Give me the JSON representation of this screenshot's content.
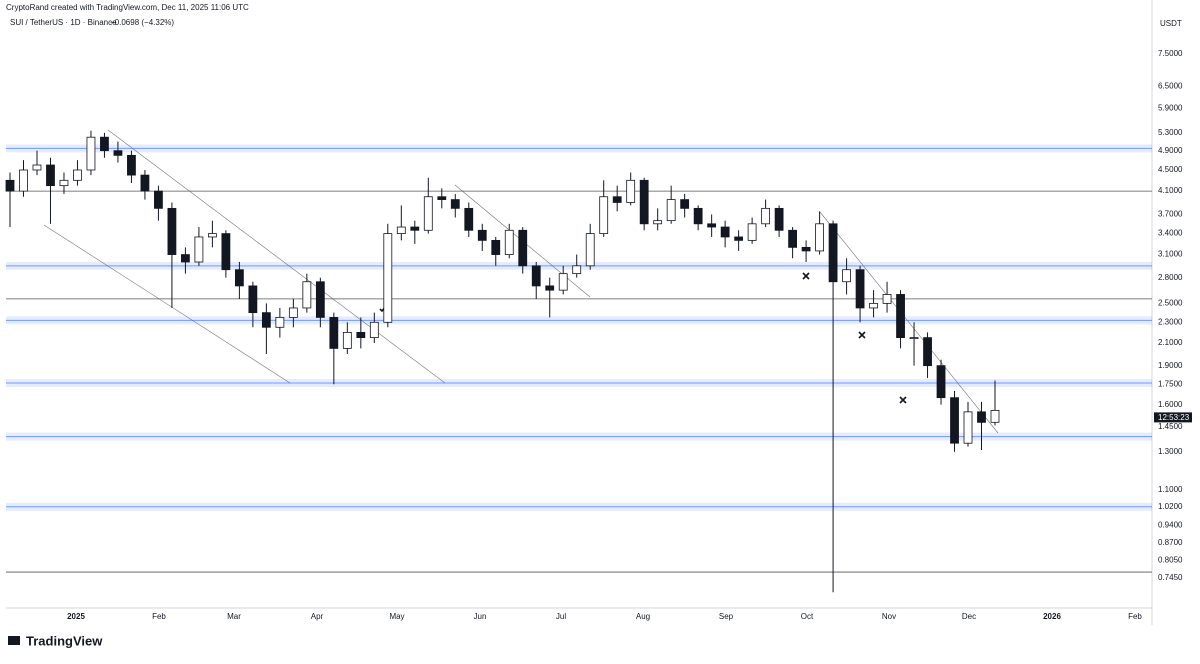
{
  "chart_data": {
    "type": "candlestick",
    "credit": "CryptoRand created with TradingView.com, Dec 11, 2025 11:06 UTC",
    "symbol": "SUI / TetherUS · 1D · Binance",
    "change": "−0.0698 (−4.32%)",
    "y_axis_label": "USDT",
    "countdown": "12:53:23",
    "brand": "TradingView",
    "log_scale": true,
    "ylim": [
      0.653,
      8.34
    ],
    "yticks": [
      {
        "value": 7.5,
        "label": "7.5000"
      },
      {
        "value": 6.5,
        "label": "6.5000"
      },
      {
        "value": 5.9,
        "label": "5.9000"
      },
      {
        "value": 5.3,
        "label": "5.3000"
      },
      {
        "value": 4.9,
        "label": "4.9000"
      },
      {
        "value": 4.5,
        "label": "4.5000"
      },
      {
        "value": 4.1,
        "label": "4.1000"
      },
      {
        "value": 3.7,
        "label": "3.7000"
      },
      {
        "value": 3.4,
        "label": "3.4000"
      },
      {
        "value": 3.1,
        "label": "3.1000"
      },
      {
        "value": 2.8,
        "label": "2.8000"
      },
      {
        "value": 2.5,
        "label": "2.5000"
      },
      {
        "value": 2.3,
        "label": "2.3000"
      },
      {
        "value": 2.1,
        "label": "2.1000"
      },
      {
        "value": 1.9,
        "label": "1.9000"
      },
      {
        "value": 1.75,
        "label": "1.7500"
      },
      {
        "value": 1.6,
        "label": "1.6000"
      },
      {
        "value": 1.45,
        "label": "1.4500"
      },
      {
        "value": 1.3,
        "label": "1.3000"
      },
      {
        "value": 1.1,
        "label": "1.1000"
      },
      {
        "value": 1.02,
        "label": "1.0200"
      },
      {
        "value": 0.94,
        "label": "0.9400"
      },
      {
        "value": 0.87,
        "label": "0.8700"
      },
      {
        "value": 0.805,
        "label": "0.8050"
      },
      {
        "value": 0.745,
        "label": "0.7450"
      }
    ],
    "x_labels": [
      "2025",
      "Feb",
      "Mar",
      "Apr",
      "May",
      "Jun",
      "Jul",
      "Aug",
      "Sep",
      "Oct",
      "Nov",
      "Dec",
      "2026",
      "Feb"
    ],
    "zones": [
      4.95,
      2.95,
      2.32,
      1.76,
      1.39,
      1.02
    ],
    "zone_color": "#2962ff",
    "levels": [
      4.1,
      2.55,
      0.765
    ],
    "level_color": "#555555",
    "up_color": "#ffffff",
    "down_color": "#131722",
    "open": [
      4.3,
      4.1,
      4.5,
      4.6,
      4.2,
      4.3,
      4.5,
      5.2,
      4.9,
      4.8,
      4.4,
      4.1,
      3.8,
      3.1,
      3.0,
      3.35,
      3.4,
      2.9,
      2.7,
      2.4,
      2.25,
      2.35,
      2.45,
      2.75,
      2.35,
      2.05,
      2.2,
      2.15,
      2.3,
      3.4,
      3.5,
      3.45,
      4.0,
      3.95,
      3.8,
      3.45,
      3.3,
      3.1,
      3.45,
      2.95,
      2.7,
      2.65,
      2.85,
      2.95,
      3.4,
      4.0,
      3.9,
      4.3,
      3.55,
      3.6,
      3.95,
      3.8,
      3.55,
      3.5,
      3.35,
      3.3,
      3.55,
      3.8,
      3.45,
      3.2,
      3.15,
      3.55,
      2.75,
      2.9,
      2.45,
      2.5,
      2.6,
      2.15,
      2.15,
      1.9,
      1.65,
      1.35,
      1.55,
      1.48
    ],
    "high": [
      4.45,
      4.7,
      4.9,
      4.75,
      4.45,
      4.7,
      5.35,
      5.3,
      5.1,
      4.9,
      4.5,
      4.2,
      3.9,
      3.2,
      3.5,
      3.6,
      3.45,
      3.0,
      2.75,
      2.5,
      2.45,
      2.55,
      2.85,
      2.8,
      2.4,
      2.3,
      2.35,
      2.4,
      3.55,
      3.85,
      3.6,
      4.35,
      4.15,
      4.05,
      3.9,
      3.55,
      3.35,
      3.55,
      3.5,
      3.0,
      2.8,
      2.95,
      3.1,
      3.55,
      4.3,
      4.2,
      4.45,
      4.35,
      3.8,
      4.2,
      4.05,
      3.85,
      3.7,
      3.6,
      3.45,
      3.65,
      3.95,
      3.85,
      3.5,
      3.3,
      3.75,
      3.6,
      3.05,
      2.95,
      2.65,
      2.75,
      2.65,
      2.3,
      2.2,
      1.95,
      1.7,
      1.62,
      1.62,
      1.78
    ],
    "low": [
      3.5,
      4.0,
      4.4,
      3.55,
      4.05,
      4.2,
      4.4,
      4.75,
      4.65,
      4.25,
      3.95,
      3.6,
      2.45,
      2.85,
      2.95,
      3.2,
      2.8,
      2.55,
      2.25,
      2.0,
      2.15,
      2.25,
      2.4,
      2.25,
      1.75,
      2.0,
      2.05,
      2.1,
      2.25,
      3.3,
      3.25,
      3.4,
      3.8,
      3.65,
      3.35,
      3.15,
      2.95,
      3.05,
      2.85,
      2.55,
      2.35,
      2.6,
      2.8,
      2.9,
      3.35,
      3.75,
      3.85,
      3.45,
      3.45,
      3.55,
      3.65,
      3.45,
      3.35,
      3.2,
      3.15,
      3.25,
      3.5,
      3.35,
      3.05,
      3.0,
      3.1,
      0.7,
      2.6,
      2.3,
      2.35,
      2.4,
      2.05,
      1.9,
      1.8,
      1.6,
      1.3,
      1.33,
      1.31,
      1.46
    ],
    "close": [
      4.1,
      4.5,
      4.6,
      4.2,
      4.3,
      4.5,
      5.2,
      4.9,
      4.8,
      4.4,
      4.1,
      3.8,
      3.1,
      3.0,
      3.35,
      3.4,
      2.9,
      2.7,
      2.4,
      2.25,
      2.35,
      2.45,
      2.75,
      2.35,
      2.05,
      2.2,
      2.15,
      2.3,
      3.4,
      3.5,
      3.45,
      4.0,
      3.95,
      3.8,
      3.45,
      3.3,
      3.1,
      3.45,
      2.95,
      2.7,
      2.65,
      2.85,
      2.95,
      3.4,
      4.0,
      3.9,
      4.3,
      3.55,
      3.6,
      3.95,
      3.8,
      3.55,
      3.5,
      3.35,
      3.3,
      3.55,
      3.8,
      3.45,
      3.2,
      3.15,
      3.55,
      2.75,
      2.9,
      2.45,
      2.5,
      2.6,
      2.15,
      2.15,
      1.9,
      1.65,
      1.35,
      1.55,
      1.48,
      1.56
    ]
  }
}
